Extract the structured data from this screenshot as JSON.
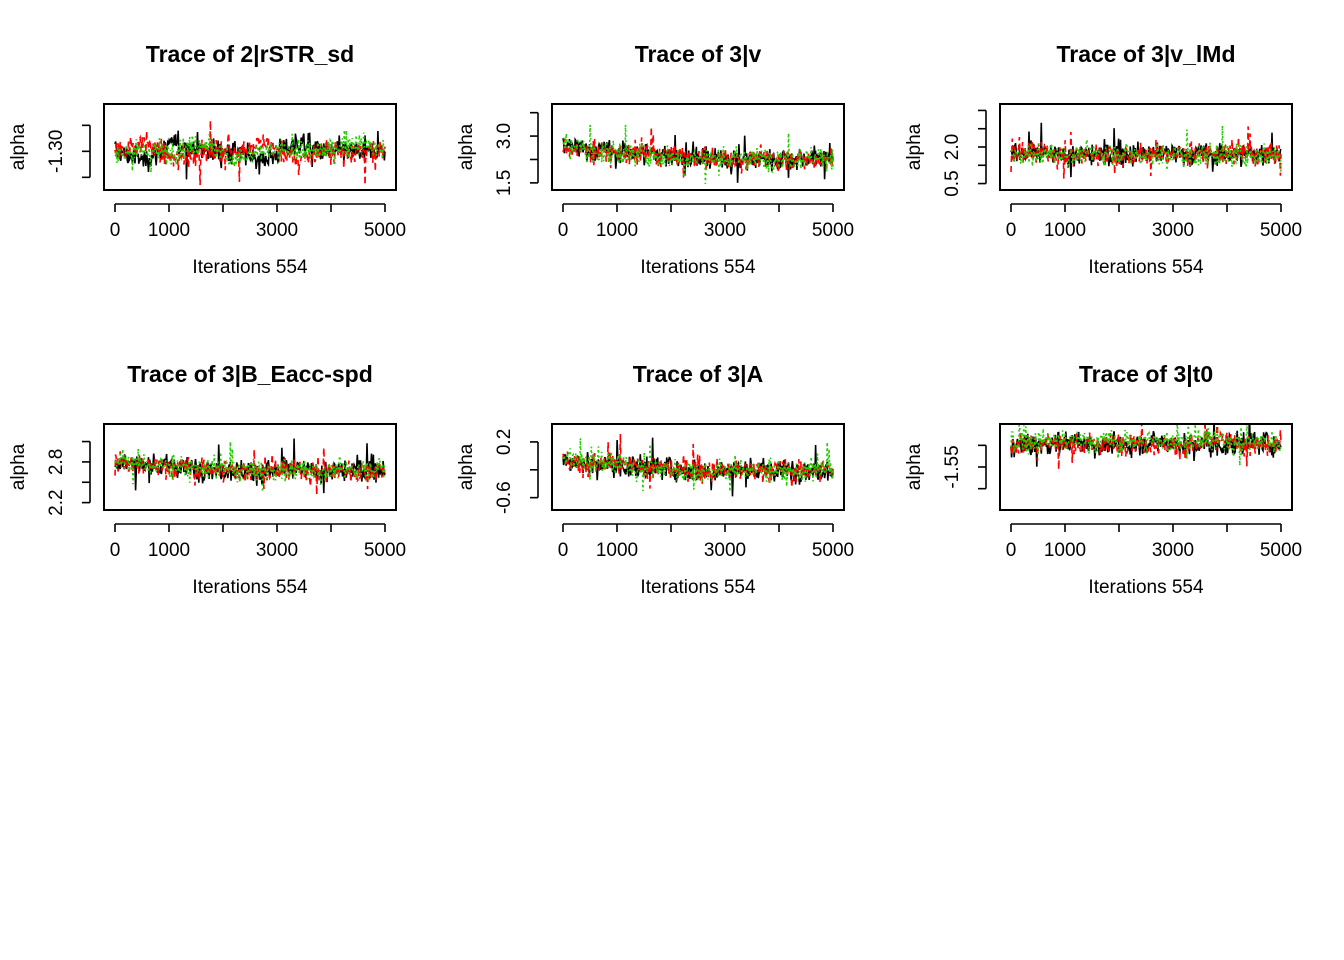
{
  "series_colors": [
    "#000000",
    "#ff0000",
    "#22cc00"
  ],
  "chart_data": [
    {
      "type": "line",
      "title": "Trace of 2|rSTR_sd",
      "xlabel": "Iterations 554",
      "ylabel": "alpha",
      "xlim": [
        0,
        5000
      ],
      "ylim": [
        -1.34,
        -1.25
      ],
      "xticks": [
        0,
        1000,
        2000,
        3000,
        4000,
        5000
      ],
      "xtick_labels": [
        "0",
        "1000",
        "",
        "3000",
        "",
        "5000"
      ],
      "yticks": [
        -1.33,
        -1.3,
        -1.27
      ],
      "ytick_labels": [
        "",
        "-1.30",
        ""
      ],
      "series": [
        {
          "color": "#000000",
          "dash": "solid",
          "values": [
            -1.3,
            -1.31,
            -1.29,
            -1.3,
            -1.3,
            -1.31,
            -1.29,
            -1.3,
            -1.3,
            -1.3
          ]
        },
        {
          "color": "#ff0000",
          "dash": "dashed",
          "values": [
            -1.3,
            -1.29,
            -1.31,
            -1.3,
            -1.3,
            -1.29,
            -1.31,
            -1.3,
            -1.3,
            -1.3
          ]
        },
        {
          "color": "#22cc00",
          "dash": "dotted",
          "values": [
            -1.3,
            -1.3,
            -1.3,
            -1.29,
            -1.31,
            -1.3,
            -1.3,
            -1.3,
            -1.29,
            -1.3
          ]
        }
      ]
    },
    {
      "type": "line",
      "title": "Trace of 3|v",
      "xlabel": "Iterations 554",
      "ylabel": "alpha",
      "xlim": [
        0,
        5000
      ],
      "ylim": [
        1.4,
        3.9
      ],
      "xticks": [
        0,
        1000,
        2000,
        3000,
        4000,
        5000
      ],
      "xtick_labels": [
        "0",
        "1000",
        "",
        "3000",
        "",
        "5000"
      ],
      "yticks": [
        1.5,
        2.25,
        3.0,
        3.75
      ],
      "ytick_labels": [
        "1.5",
        "",
        "3.0",
        ""
      ],
      "series": [
        {
          "color": "#000000",
          "dash": "solid",
          "values": [
            2.7,
            2.55,
            2.5,
            2.45,
            2.3,
            2.25,
            2.3,
            2.25,
            2.3,
            2.3
          ]
        },
        {
          "color": "#ff0000",
          "dash": "dashed",
          "values": [
            2.6,
            2.5,
            2.45,
            2.4,
            2.35,
            2.3,
            2.25,
            2.3,
            2.25,
            2.3
          ]
        },
        {
          "color": "#22cc00",
          "dash": "dotted",
          "values": [
            2.8,
            2.5,
            2.45,
            2.4,
            2.3,
            2.3,
            2.25,
            2.3,
            2.3,
            2.35
          ]
        }
      ]
    },
    {
      "type": "line",
      "title": "Trace of 3|v_lMd",
      "xlabel": "Iterations 554",
      "ylabel": "alpha",
      "xlim": [
        0,
        5000
      ],
      "ylim": [
        0.4,
        3.6
      ],
      "xticks": [
        0,
        1000,
        2000,
        3000,
        4000,
        5000
      ],
      "xtick_labels": [
        "0",
        "1000",
        "",
        "3000",
        "",
        "5000"
      ],
      "yticks": [
        0.5,
        1.25,
        2.0,
        2.75,
        3.5
      ],
      "ytick_labels": [
        "0.5",
        "",
        "2.0",
        "",
        ""
      ],
      "series": [
        {
          "color": "#000000",
          "dash": "solid",
          "values": [
            1.7,
            1.7,
            1.65,
            1.7,
            1.7,
            1.75,
            1.7,
            1.7,
            1.7,
            1.7
          ]
        },
        {
          "color": "#ff0000",
          "dash": "dashed",
          "values": [
            1.7,
            1.75,
            1.7,
            1.7,
            1.65,
            1.7,
            1.7,
            1.75,
            1.7,
            1.7
          ]
        },
        {
          "color": "#22cc00",
          "dash": "dotted",
          "values": [
            1.7,
            1.7,
            1.7,
            1.75,
            1.7,
            1.7,
            1.65,
            1.7,
            1.7,
            1.7
          ]
        }
      ]
    },
    {
      "type": "line",
      "title": "Trace of 3|B_Eacc-spd",
      "xlabel": "Iterations 554",
      "ylabel": "alpha",
      "xlim": [
        0,
        5000
      ],
      "ylim": [
        2.15,
        3.3
      ],
      "xticks": [
        0,
        1000,
        2000,
        3000,
        4000,
        5000
      ],
      "xtick_labels": [
        "0",
        "1000",
        "",
        "3000",
        "",
        "5000"
      ],
      "yticks": [
        2.2,
        2.5,
        2.8,
        3.1
      ],
      "ytick_labels": [
        "2.2",
        "",
        "2.8",
        ""
      ],
      "series": [
        {
          "color": "#000000",
          "dash": "solid",
          "values": [
            2.8,
            2.75,
            2.72,
            2.7,
            2.68,
            2.66,
            2.68,
            2.66,
            2.68,
            2.7
          ]
        },
        {
          "color": "#ff0000",
          "dash": "dashed",
          "values": [
            2.78,
            2.74,
            2.72,
            2.7,
            2.67,
            2.66,
            2.67,
            2.68,
            2.67,
            2.7
          ]
        },
        {
          "color": "#22cc00",
          "dash": "dotted",
          "values": [
            2.82,
            2.76,
            2.73,
            2.71,
            2.68,
            2.67,
            2.68,
            2.67,
            2.69,
            2.7
          ]
        }
      ]
    },
    {
      "type": "line",
      "title": "Trace of 3|A",
      "xlabel": "Iterations 554",
      "ylabel": "alpha",
      "xlim": [
        0,
        5000
      ],
      "ylim": [
        -0.72,
        0.4
      ],
      "xticks": [
        0,
        1000,
        2000,
        3000,
        4000,
        5000
      ],
      "xtick_labels": [
        "0",
        "1000",
        "",
        "3000",
        "",
        "5000"
      ],
      "yticks": [
        -0.6,
        -0.2,
        0.2
      ],
      "ytick_labels": [
        "-0.6",
        "",
        "0.2"
      ],
      "series": [
        {
          "color": "#000000",
          "dash": "solid",
          "values": [
            -0.05,
            -0.12,
            -0.15,
            -0.15,
            -0.2,
            -0.22,
            -0.2,
            -0.22,
            -0.2,
            -0.2
          ]
        },
        {
          "color": "#ff0000",
          "dash": "dashed",
          "values": [
            -0.08,
            -0.12,
            -0.14,
            -0.16,
            -0.2,
            -0.21,
            -0.22,
            -0.2,
            -0.21,
            -0.2
          ]
        },
        {
          "color": "#22cc00",
          "dash": "dotted",
          "values": [
            0.0,
            -0.1,
            -0.14,
            -0.16,
            -0.2,
            -0.22,
            -0.2,
            -0.21,
            -0.22,
            -0.2
          ]
        }
      ]
    },
    {
      "type": "line",
      "title": "Trace of 3|t0",
      "xlabel": "Iterations 554",
      "ylabel": "alpha",
      "xlim": [
        0,
        5000
      ],
      "ylim": [
        -1.64,
        -1.46
      ],
      "xticks": [
        0,
        1000,
        2000,
        3000,
        4000,
        5000
      ],
      "xtick_labels": [
        "0",
        "1000",
        "",
        "3000",
        "",
        "5000"
      ],
      "yticks": [
        -1.6,
        -1.55,
        -1.5
      ],
      "ytick_labels": [
        "",
        "-1.55",
        ""
      ],
      "series": [
        {
          "color": "#000000",
          "dash": "solid",
          "values": [
            -1.5,
            -1.5,
            -1.49,
            -1.5,
            -1.5,
            -1.49,
            -1.5,
            -1.5,
            -1.49,
            -1.5
          ]
        },
        {
          "color": "#ff0000",
          "dash": "dashed",
          "values": [
            -1.5,
            -1.49,
            -1.5,
            -1.5,
            -1.49,
            -1.5,
            -1.5,
            -1.49,
            -1.5,
            -1.5
          ]
        },
        {
          "color": "#22cc00",
          "dash": "dotted",
          "values": [
            -1.49,
            -1.49,
            -1.49,
            -1.49,
            -1.49,
            -1.49,
            -1.49,
            -1.49,
            -1.49,
            -1.49
          ]
        }
      ]
    }
  ]
}
